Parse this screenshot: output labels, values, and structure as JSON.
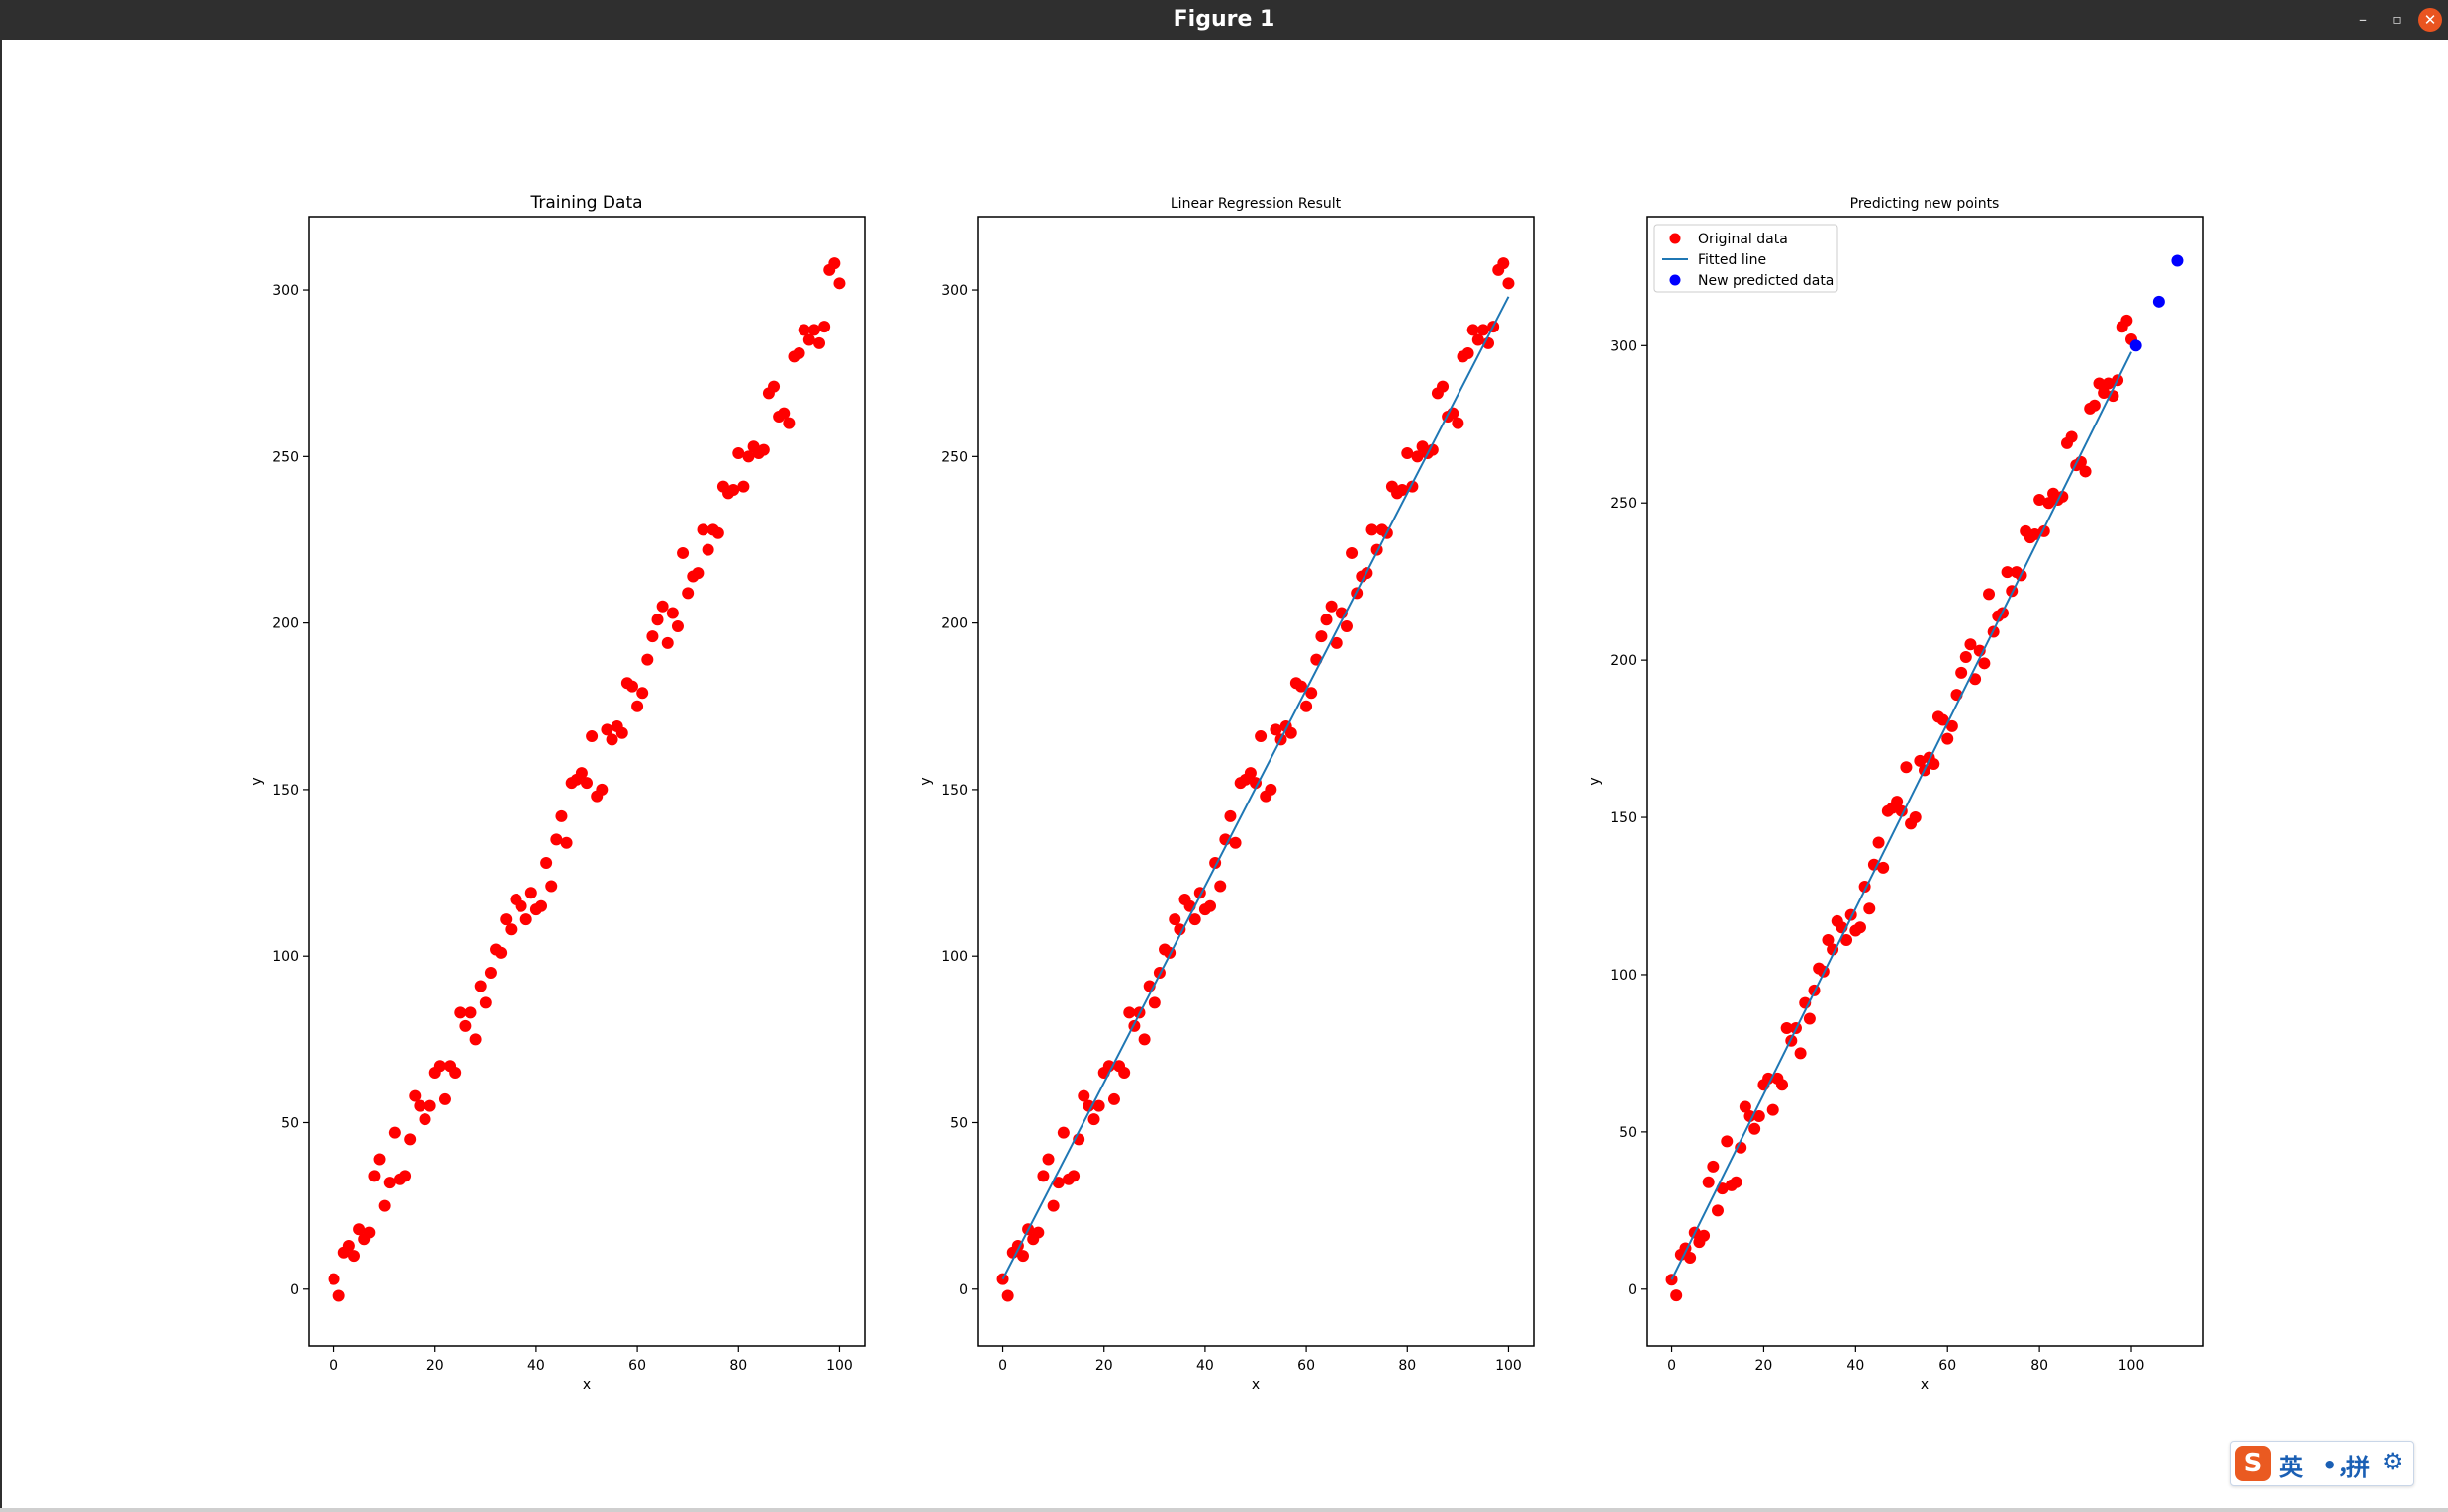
{
  "window": {
    "title": "Figure 1",
    "controls": {
      "minimize": "–",
      "maximize": "▫",
      "close": "✕"
    },
    "close_color": "#e95420"
  },
  "colors": {
    "original": "#ff0000",
    "fit": "#1f77b4",
    "predicted": "#0000ff"
  },
  "chart_data": [
    {
      "type": "scatter",
      "title": "Training Data",
      "xlabel": "x",
      "ylabel": "y",
      "xlim": [
        -5,
        105
      ],
      "ylim": [
        -17,
        322
      ],
      "xticks": [
        0,
        20,
        40,
        60,
        80,
        100
      ],
      "yticks": [
        0,
        50,
        100,
        150,
        200,
        250,
        300
      ],
      "grid": false,
      "series": [
        {
          "x": [
            0,
            1,
            2,
            3,
            4,
            5,
            6,
            7,
            8,
            9,
            10,
            11,
            12,
            13,
            14,
            15,
            16,
            17,
            18,
            19,
            20,
            21,
            22,
            23,
            24,
            25,
            26,
            27,
            28,
            29,
            30,
            31,
            32,
            33,
            34,
            35,
            36,
            37,
            38,
            39,
            40,
            41,
            42,
            43,
            44,
            45,
            46,
            47,
            48,
            49,
            50,
            51,
            52,
            53,
            54,
            55,
            56,
            57,
            58,
            59,
            60,
            61,
            62,
            63,
            64,
            65,
            66,
            67,
            68,
            69,
            70,
            71,
            72,
            73,
            74,
            75,
            76,
            77,
            78,
            79,
            80,
            81,
            82,
            83,
            84,
            85,
            86,
            87,
            88,
            89,
            90,
            91,
            92,
            93,
            94,
            95,
            96,
            97,
            98,
            99,
            100
          ],
          "y": [
            3,
            -2,
            11,
            13,
            10,
            18,
            15,
            17,
            34,
            39,
            25,
            32,
            47,
            33,
            34,
            45,
            58,
            55,
            51,
            55,
            65,
            67,
            57,
            67,
            65,
            83,
            79,
            83,
            75,
            91,
            86,
            95,
            102,
            101,
            111,
            108,
            117,
            115,
            111,
            119,
            114,
            115,
            128,
            121,
            135,
            142,
            134,
            152,
            153,
            155,
            152,
            166,
            148,
            150,
            168,
            165,
            169,
            167,
            182,
            181,
            175,
            179,
            189,
            196,
            201,
            205,
            194,
            203,
            199,
            221,
            209,
            214,
            215,
            228,
            222,
            228,
            227,
            241,
            239,
            240,
            251,
            241,
            250,
            253,
            251,
            252,
            269,
            271,
            262,
            263,
            260,
            280,
            281,
            288,
            285,
            288,
            284,
            289,
            306,
            308,
            302
          ]
        }
      ]
    },
    {
      "type": "scatter+line",
      "title": "Linear Regression Result",
      "xlabel": "x",
      "ylabel": "y",
      "xlim": [
        -5,
        105
      ],
      "ylim": [
        -17,
        322
      ],
      "xticks": [
        0,
        20,
        40,
        60,
        80,
        100
      ],
      "yticks": [
        0,
        50,
        100,
        150,
        200,
        250,
        300
      ],
      "grid": false,
      "series": [
        {
          "x": [
            0,
            1,
            2,
            3,
            4,
            5,
            6,
            7,
            8,
            9,
            10,
            11,
            12,
            13,
            14,
            15,
            16,
            17,
            18,
            19,
            20,
            21,
            22,
            23,
            24,
            25,
            26,
            27,
            28,
            29,
            30,
            31,
            32,
            33,
            34,
            35,
            36,
            37,
            38,
            39,
            40,
            41,
            42,
            43,
            44,
            45,
            46,
            47,
            48,
            49,
            50,
            51,
            52,
            53,
            54,
            55,
            56,
            57,
            58,
            59,
            60,
            61,
            62,
            63,
            64,
            65,
            66,
            67,
            68,
            69,
            70,
            71,
            72,
            73,
            74,
            75,
            76,
            77,
            78,
            79,
            80,
            81,
            82,
            83,
            84,
            85,
            86,
            87,
            88,
            89,
            90,
            91,
            92,
            93,
            94,
            95,
            96,
            97,
            98,
            99,
            100
          ],
          "y": [
            3,
            -2,
            11,
            13,
            10,
            18,
            15,
            17,
            34,
            39,
            25,
            32,
            47,
            33,
            34,
            45,
            58,
            55,
            51,
            55,
            65,
            67,
            57,
            67,
            65,
            83,
            79,
            83,
            75,
            91,
            86,
            95,
            102,
            101,
            111,
            108,
            117,
            115,
            111,
            119,
            114,
            115,
            128,
            121,
            135,
            142,
            134,
            152,
            153,
            155,
            152,
            166,
            148,
            150,
            168,
            165,
            169,
            167,
            182,
            181,
            175,
            179,
            189,
            196,
            201,
            205,
            194,
            203,
            199,
            221,
            209,
            214,
            215,
            228,
            222,
            228,
            227,
            241,
            239,
            240,
            251,
            241,
            250,
            253,
            251,
            252,
            269,
            271,
            262,
            263,
            260,
            280,
            281,
            288,
            285,
            288,
            284,
            289,
            306,
            308,
            302
          ]
        },
        {
          "x": [
            0,
            100
          ],
          "y": [
            3,
            298
          ]
        }
      ]
    },
    {
      "type": "scatter+line",
      "title": "Predicting new points",
      "xlabel": "x",
      "ylabel": "y",
      "xlim": [
        -5.5,
        115.5
      ],
      "ylim": [
        -18,
        341
      ],
      "xticks": [
        0,
        20,
        40,
        60,
        80,
        100
      ],
      "yticks": [
        0,
        50,
        100,
        150,
        200,
        250,
        300
      ],
      "grid": false,
      "legend": "top-left",
      "series": [
        {
          "name": "Original data",
          "x": [
            0,
            1,
            2,
            3,
            4,
            5,
            6,
            7,
            8,
            9,
            10,
            11,
            12,
            13,
            14,
            15,
            16,
            17,
            18,
            19,
            20,
            21,
            22,
            23,
            24,
            25,
            26,
            27,
            28,
            29,
            30,
            31,
            32,
            33,
            34,
            35,
            36,
            37,
            38,
            39,
            40,
            41,
            42,
            43,
            44,
            45,
            46,
            47,
            48,
            49,
            50,
            51,
            52,
            53,
            54,
            55,
            56,
            57,
            58,
            59,
            60,
            61,
            62,
            63,
            64,
            65,
            66,
            67,
            68,
            69,
            70,
            71,
            72,
            73,
            74,
            75,
            76,
            77,
            78,
            79,
            80,
            81,
            82,
            83,
            84,
            85,
            86,
            87,
            88,
            89,
            90,
            91,
            92,
            93,
            94,
            95,
            96,
            97,
            98,
            99,
            100
          ],
          "y": [
            3,
            -2,
            11,
            13,
            10,
            18,
            15,
            17,
            34,
            39,
            25,
            32,
            47,
            33,
            34,
            45,
            58,
            55,
            51,
            55,
            65,
            67,
            57,
            67,
            65,
            83,
            79,
            83,
            75,
            91,
            86,
            95,
            102,
            101,
            111,
            108,
            117,
            115,
            111,
            119,
            114,
            115,
            128,
            121,
            135,
            142,
            134,
            152,
            153,
            155,
            152,
            166,
            148,
            150,
            168,
            165,
            169,
            167,
            182,
            181,
            175,
            179,
            189,
            196,
            201,
            205,
            194,
            203,
            199,
            221,
            209,
            214,
            215,
            228,
            222,
            228,
            227,
            241,
            239,
            240,
            251,
            241,
            250,
            253,
            251,
            252,
            269,
            271,
            262,
            263,
            260,
            280,
            281,
            288,
            285,
            288,
            284,
            289,
            306,
            308,
            302
          ]
        },
        {
          "name": "Fitted line",
          "x": [
            0,
            100
          ],
          "y": [
            3,
            298
          ]
        },
        {
          "name": "New predicted data",
          "x": [
            101,
            106,
            110
          ],
          "y": [
            300,
            314,
            327
          ]
        }
      ]
    }
  ],
  "ime": {
    "logo": "S",
    "lang": "英",
    "punct": "•，",
    "mode": "拼",
    "settings": "⚙"
  }
}
